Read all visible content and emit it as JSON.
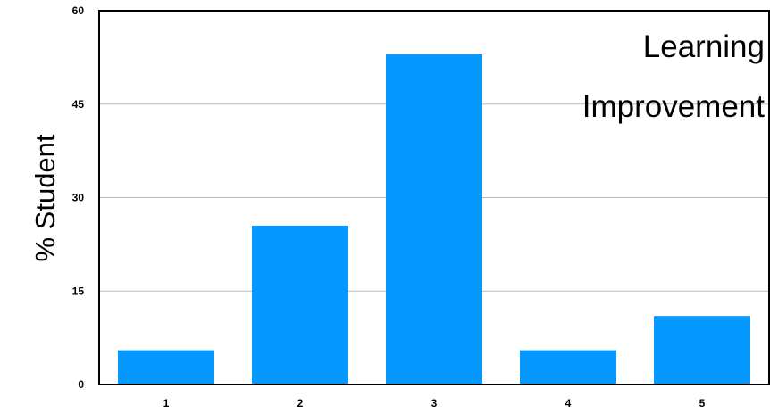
{
  "chart_data": {
    "type": "bar",
    "title_lines": [
      "Learning",
      "Improvement"
    ],
    "xlabel": "",
    "ylabel": "% Student",
    "categories": [
      "1",
      "2",
      "3",
      "4",
      "5"
    ],
    "values": [
      5.5,
      25.5,
      53,
      5.5,
      11
    ],
    "ylim": [
      0,
      60
    ],
    "yticks": [
      0,
      15,
      30,
      45,
      60
    ],
    "ytick_labels": [
      "0",
      "15",
      "30",
      "45",
      "60"
    ],
    "grid": true,
    "legend": "none",
    "colors": {
      "bar": "#0599ff",
      "grid": "#b8b8b8",
      "frame": "#000000"
    }
  }
}
